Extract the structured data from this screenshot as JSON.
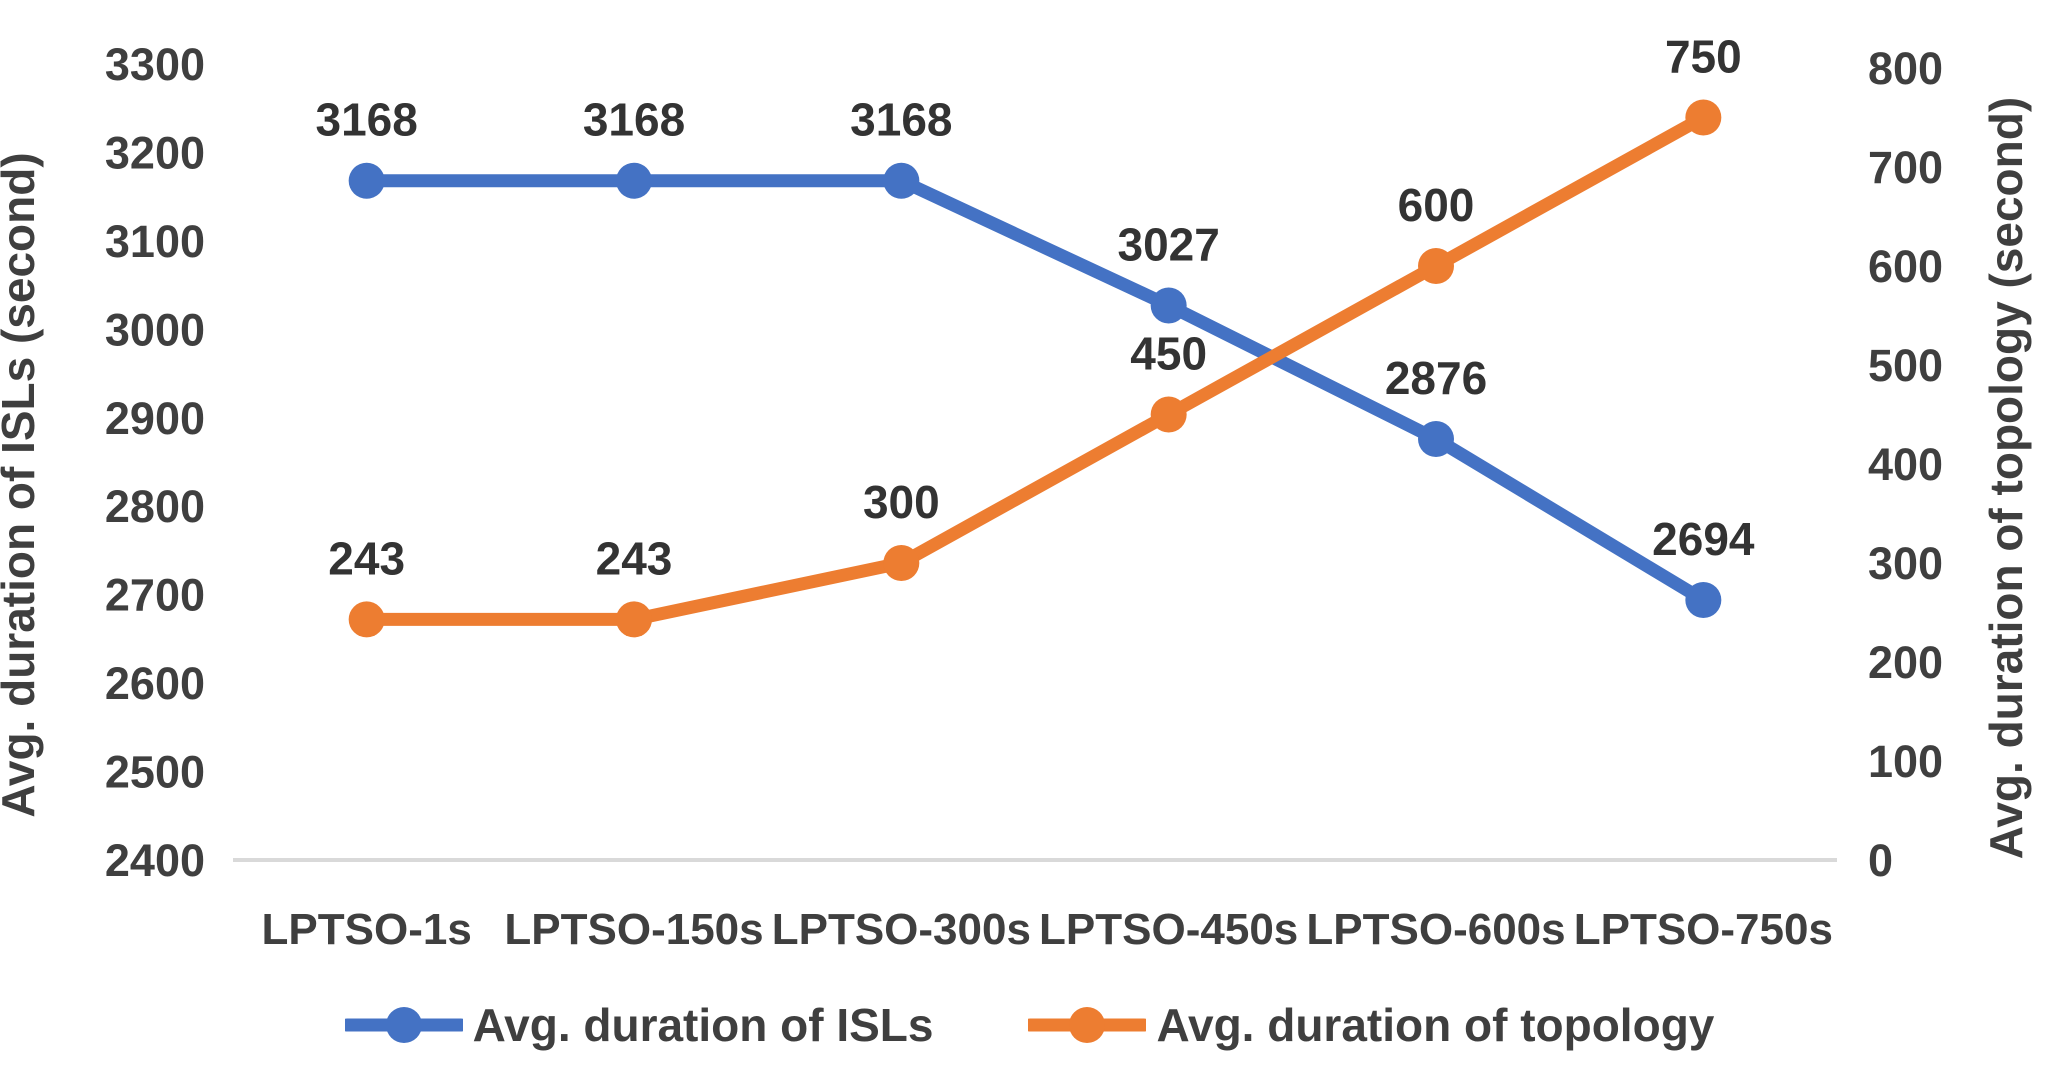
{
  "chart_data": {
    "type": "line",
    "title": "",
    "categories": [
      "LPTSO-1s",
      "LPTSO-150s",
      "LPTSO-300s",
      "LPTSO-450s",
      "LPTSO-600s",
      "LPTSO-750s"
    ],
    "series": [
      {
        "name": "Avg. duration of ISLs",
        "axis": "left",
        "color": "#4472C4",
        "marker": "circle",
        "values": [
          3168,
          3168,
          3168,
          3027,
          2876,
          2694
        ],
        "data_labels": [
          "3168",
          "3168",
          "3168",
          "3027",
          "2876",
          "2694"
        ]
      },
      {
        "name": "Avg. duration of topology",
        "axis": "right",
        "color": "#ED7D31",
        "marker": "circle",
        "values": [
          243,
          243,
          300,
          450,
          600,
          750
        ],
        "data_labels": [
          "243",
          "243",
          "300",
          "450",
          "600",
          "750"
        ]
      }
    ],
    "axes": {
      "left": {
        "title": "Avg. duration of ISLs (second)",
        "min": 2400,
        "max": 3300,
        "step": 100,
        "tick_labels": [
          "2400",
          "2500",
          "2600",
          "2700",
          "2800",
          "2900",
          "3000",
          "3100",
          "3200",
          "3300"
        ]
      },
      "right": {
        "title": "Avg. duration of topology (second)",
        "min": 0,
        "max": 800,
        "step": 100,
        "tick_labels": [
          "0",
          "100",
          "200",
          "300",
          "400",
          "500",
          "600",
          "700",
          "800"
        ]
      }
    },
    "grid": "off",
    "legend_position": "bottom"
  },
  "legend": {
    "items": [
      {
        "label": "Avg. duration of ISLs",
        "color": "#4472C4"
      },
      {
        "label": "Avg. duration of topology",
        "color": "#ED7D31"
      }
    ]
  },
  "colors": {
    "background": "#ffffff",
    "axis_line": "#d9d9d9",
    "tick_text": "#3f3f3f",
    "data_label_text": "#333333",
    "series_blue": "#4472C4",
    "series_orange": "#ED7D31"
  }
}
